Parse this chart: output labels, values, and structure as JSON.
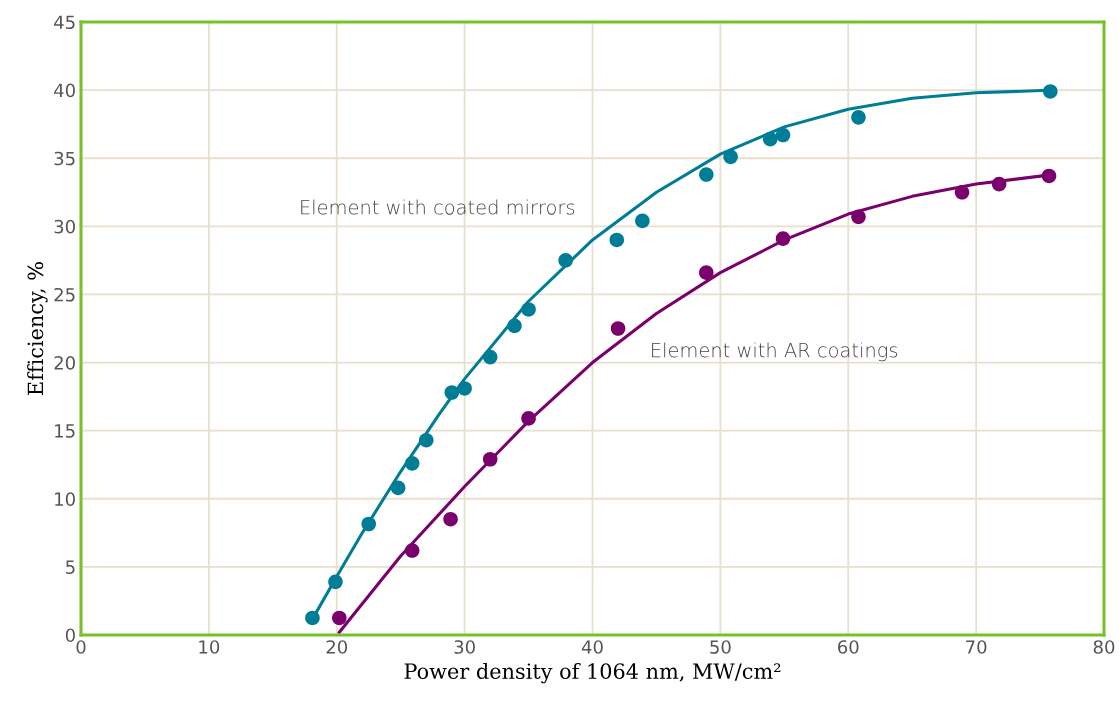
{
  "chart_data": {
    "type": "line",
    "xlabel": "Power density of 1064 nm, MW/cm²",
    "ylabel": "Efficiency, %",
    "xlim": [
      0,
      80
    ],
    "ylim": [
      0,
      45
    ],
    "xticks": [
      0,
      10,
      20,
      30,
      40,
      50,
      60,
      70,
      80
    ],
    "yticks": [
      0,
      5,
      10,
      15,
      20,
      25,
      30,
      35,
      40,
      45
    ],
    "grid": true,
    "series": [
      {
        "color": "#007d96",
        "marker": "none",
        "x": [
          18,
          20,
          22,
          25,
          28,
          30,
          35,
          40,
          45,
          50,
          55,
          60,
          65,
          70,
          76
        ],
        "values": [
          1.0,
          4.3,
          7.5,
          12.0,
          16.2,
          18.8,
          24.5,
          29.0,
          32.5,
          35.3,
          37.3,
          38.6,
          39.4,
          39.8,
          40.0
        ]
      },
      {
        "color": "#7a006e",
        "marker": "none",
        "x": [
          20.2,
          25,
          30,
          35,
          40,
          45,
          50,
          55,
          60,
          65,
          70,
          76
        ],
        "values": [
          0.2,
          5.8,
          10.9,
          15.7,
          20.0,
          23.6,
          26.6,
          29.0,
          30.9,
          32.2,
          33.1,
          33.8
        ]
      },
      {
        "type": "scatter",
        "marker": "circle",
        "color": "#007d96",
        "x": [
          18.1,
          19.9,
          22.5,
          24.8,
          25.9,
          27,
          29.0,
          30.0,
          32.0,
          33.9,
          35.0,
          37.9,
          41.9,
          43.9,
          48.9,
          50.8,
          53.9,
          54.9,
          60.8,
          75.8
        ],
        "values": [
          1.25,
          3.9,
          8.15,
          10.8,
          12.6,
          14.3,
          17.8,
          18.1,
          20.4,
          22.7,
          23.9,
          27.5,
          29.0,
          30.4,
          33.8,
          35.1,
          36.4,
          36.7,
          38.0,
          39.9
        ]
      },
      {
        "type": "scatter",
        "marker": "circle",
        "color": "#7a006e",
        "x": [
          20.2,
          25.9,
          28.9,
          32,
          35,
          42,
          48.9,
          54.9,
          60.8,
          68.9,
          71.8,
          75.7
        ],
        "values": [
          1.25,
          6.2,
          8.5,
          12.9,
          15.9,
          22.5,
          26.6,
          29.1,
          30.7,
          32.5,
          33.1,
          33.7
        ]
      }
    ],
    "annotations": [
      "Element with coated mirrors",
      "Element with AR coatings"
    ]
  }
}
